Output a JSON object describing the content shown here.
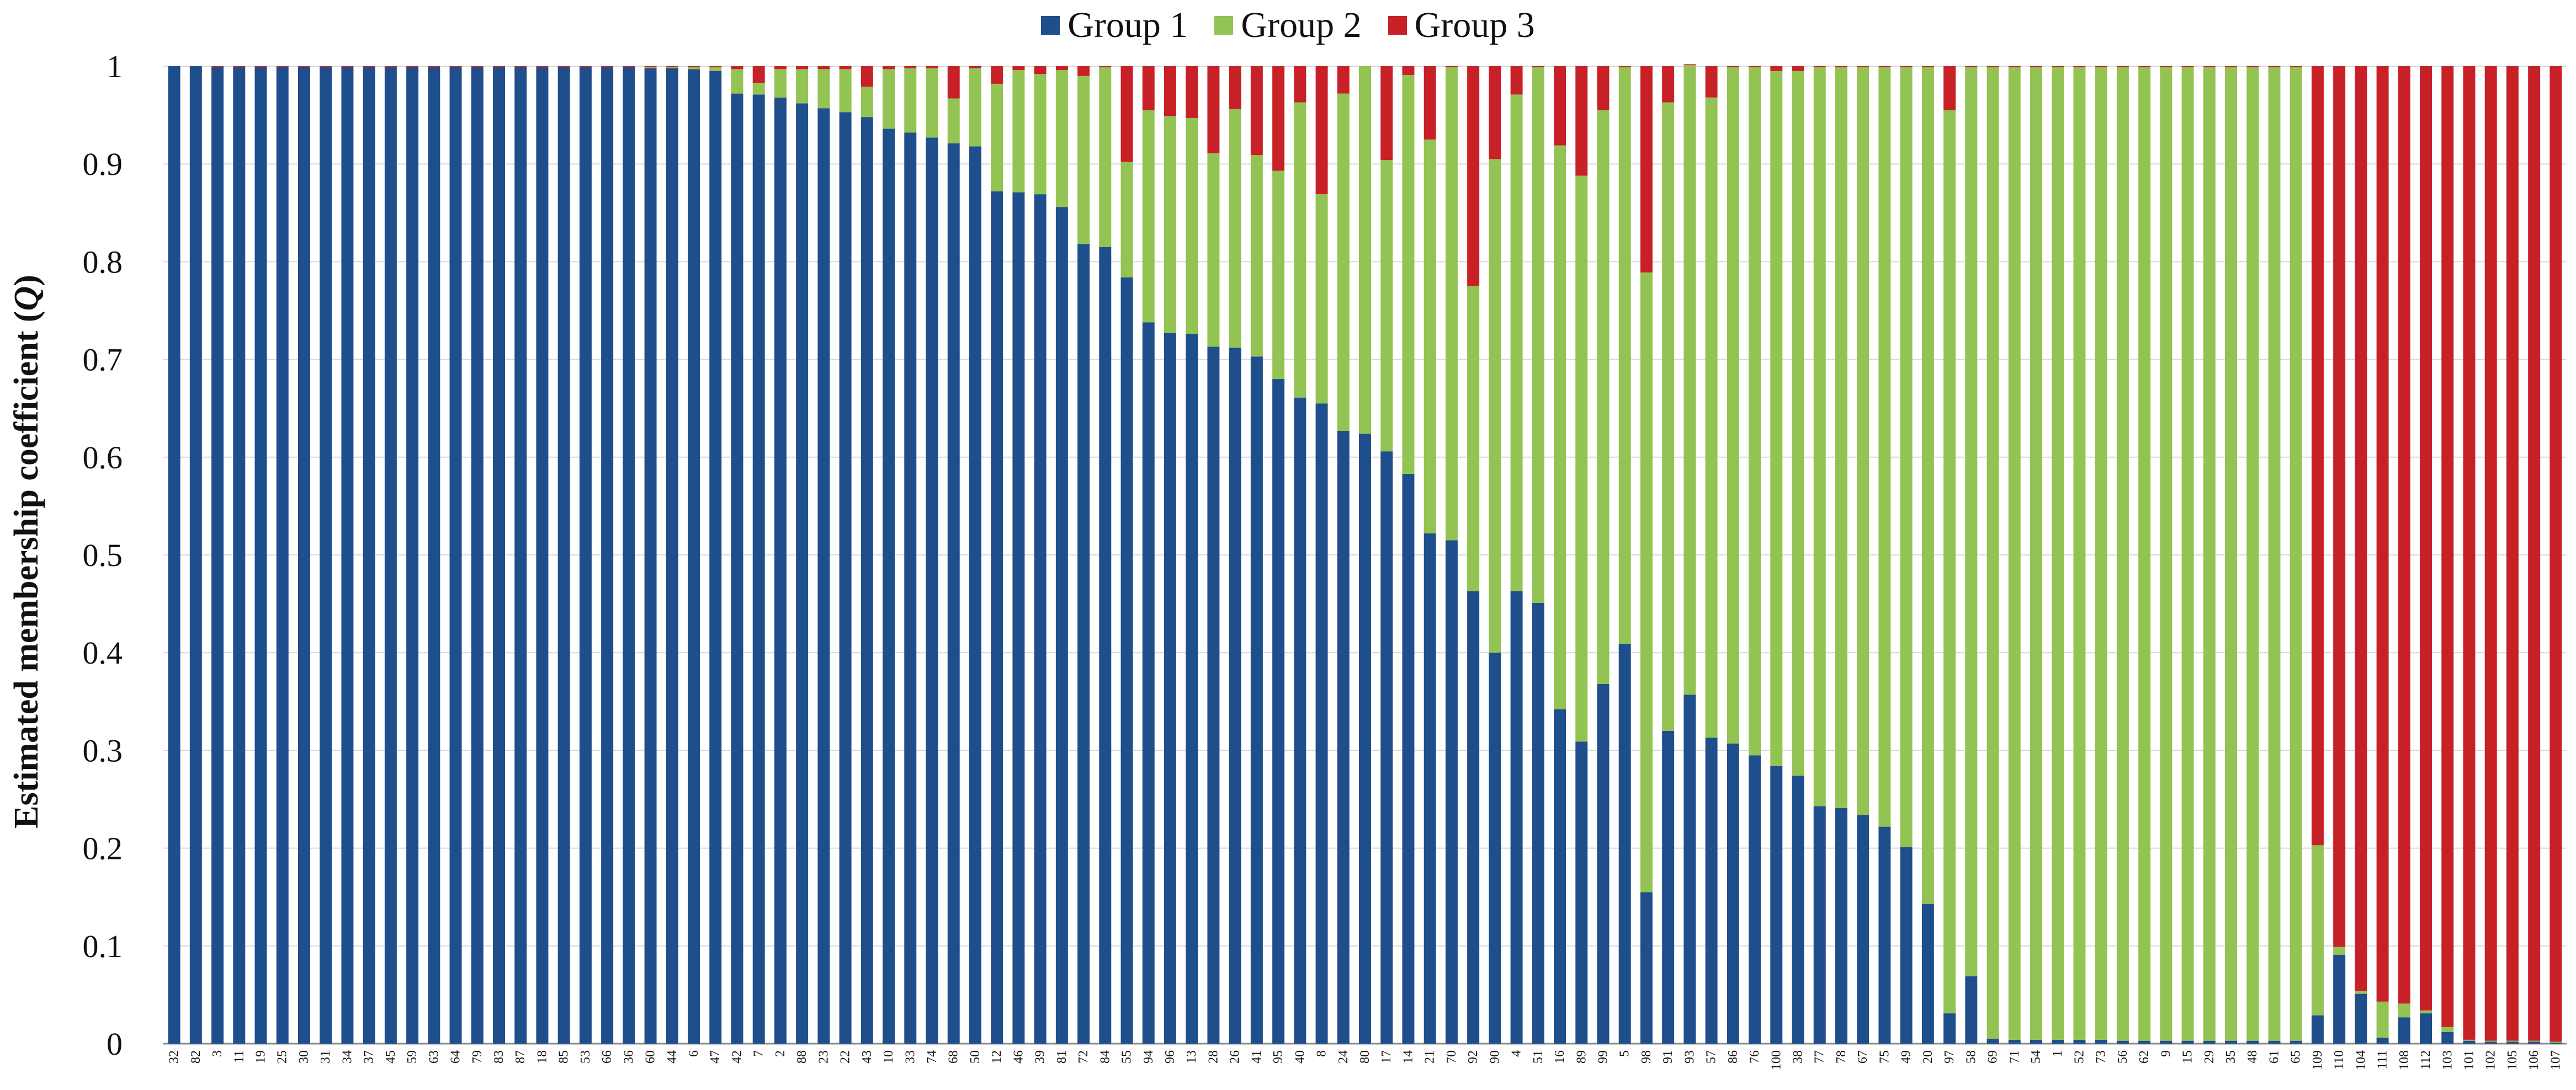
{
  "chart_data": {
    "type": "bar",
    "stacked": true,
    "title": "",
    "xlabel": "",
    "ylabel": "Estimated membership coefficient (Q)",
    "ylabel_parts": [
      "Estimated membership coefficient (",
      "Q",
      ")"
    ],
    "ylim": [
      0,
      1
    ],
    "yticks": [
      "0",
      "0.1",
      "0.2",
      "0.3",
      "0.4",
      "0.5",
      "0.6",
      "0.7",
      "0.8",
      "0.9",
      "1"
    ],
    "grid": true,
    "legend_position": "top-center",
    "categories": [
      "32",
      "82",
      "3",
      "11",
      "19",
      "25",
      "30",
      "31",
      "34",
      "37",
      "45",
      "59",
      "63",
      "64",
      "79",
      "83",
      "87",
      "18",
      "85",
      "53",
      "66",
      "36",
      "60",
      "44",
      "6",
      "47",
      "42",
      "7",
      "2",
      "88",
      "23",
      "22",
      "43",
      "10",
      "33",
      "74",
      "68",
      "50",
      "12",
      "46",
      "39",
      "81",
      "72",
      "84",
      "55",
      "94",
      "96",
      "13",
      "28",
      "26",
      "41",
      "95",
      "40",
      "8",
      "24",
      "80",
      "17",
      "14",
      "21",
      "70",
      "92",
      "90",
      "4",
      "51",
      "16",
      "89",
      "99",
      "5",
      "98",
      "91",
      "93",
      "57",
      "86",
      "76",
      "100",
      "38",
      "77",
      "78",
      "67",
      "75",
      "49",
      "20",
      "97",
      "58",
      "69",
      "71",
      "54",
      "1",
      "52",
      "73",
      "56",
      "62",
      "9",
      "15",
      "29",
      "35",
      "48",
      "61",
      "65",
      "109",
      "110",
      "104",
      "111",
      "108",
      "112",
      "103",
      "101",
      "102",
      "105",
      "106",
      "107"
    ],
    "series": [
      {
        "name": "Group 1",
        "color": "#1f4e8c",
        "values": [
          1,
          1,
          0.999,
          0.999,
          0.999,
          0.999,
          0.999,
          0.999,
          0.999,
          0.999,
          0.999,
          0.999,
          0.999,
          0.999,
          0.999,
          0.999,
          0.999,
          0.999,
          0.999,
          0.999,
          0.999,
          0.999,
          0.998,
          0.998,
          0.997,
          0.995,
          0.972,
          0.971,
          0.968,
          0.962,
          0.957,
          0.953,
          0.948,
          0.936,
          0.932,
          0.927,
          0.921,
          0.918,
          0.872,
          0.871,
          0.869,
          0.856,
          0.818,
          0.815,
          0.784,
          0.738,
          0.727,
          0.726,
          0.713,
          0.712,
          0.703,
          0.68,
          0.661,
          0.655,
          0.627,
          0.624,
          0.606,
          0.583,
          0.522,
          0.515,
          0.463,
          0.4,
          0.463,
          0.451,
          0.342,
          0.309,
          0.368,
          0.409,
          0.155,
          0.32,
          0.357,
          0.313,
          0.307,
          0.295,
          0.284,
          0.274,
          0.243,
          0.241,
          0.234,
          0.222,
          0.201,
          0.143,
          0.031,
          0.069,
          0.005,
          0.004,
          0.004,
          0.004,
          0.004,
          0.004,
          0.003,
          0.003,
          0.003,
          0.003,
          0.003,
          0.003,
          0.003,
          0.003,
          0.003,
          0.029,
          0.091,
          0.051,
          0.006,
          0.027,
          0.031,
          0.012,
          0.003,
          0.002,
          0.002,
          0.002,
          0.001
        ]
      },
      {
        "name": "Group 2",
        "color": "#92c353",
        "values": [
          0,
          0,
          0,
          0,
          0,
          0,
          0,
          0,
          0,
          0,
          0,
          0,
          0,
          0,
          0,
          0,
          0,
          0,
          0,
          0,
          0,
          0,
          0.001,
          0.001,
          0.002,
          0.004,
          0.025,
          0.012,
          0.029,
          0.035,
          0.04,
          0.044,
          0.031,
          0.061,
          0.066,
          0.071,
          0.046,
          0.08,
          0.11,
          0.125,
          0.123,
          0.14,
          0.172,
          0.184,
          0.118,
          0.217,
          0.222,
          0.221,
          0.198,
          0.244,
          0.206,
          0.213,
          0.302,
          0.214,
          0.345,
          0.376,
          0.298,
          0.408,
          0.403,
          0.484,
          0.312,
          0.505,
          0.508,
          0.548,
          0.577,
          0.579,
          0.587,
          0.59,
          0.634,
          0.643,
          0.644,
          0.655,
          0.692,
          0.704,
          0.711,
          0.721,
          0.756,
          0.758,
          0.765,
          0.777,
          0.798,
          0.856,
          0.924,
          0.93,
          0.994,
          0.995,
          0.995,
          0.995,
          0.995,
          0.995,
          0.996,
          0.996,
          0.996,
          0.996,
          0.996,
          0.996,
          0.996,
          0.996,
          0.996,
          0.174,
          0.008,
          0.003,
          0.037,
          0.014,
          0.003,
          0.005,
          0.001,
          0.001,
          0.001,
          0.001,
          0.001
        ]
      },
      {
        "name": "Group 3",
        "color": "#c72127",
        "values": [
          0,
          0,
          0.001,
          0.001,
          0.001,
          0.001,
          0.001,
          0.001,
          0.001,
          0.001,
          0.001,
          0.001,
          0.001,
          0.001,
          0.001,
          0.001,
          0.001,
          0.001,
          0.001,
          0.001,
          0.001,
          0.001,
          0.001,
          0.001,
          0.001,
          0.001,
          0.003,
          0.017,
          0.003,
          0.003,
          0.003,
          0.003,
          0.021,
          0.003,
          0.002,
          0.002,
          0.033,
          0.002,
          0.018,
          0.004,
          0.008,
          0.004,
          0.01,
          0.001,
          0.098,
          0.045,
          0.051,
          0.053,
          0.089,
          0.044,
          0.091,
          0.107,
          0.037,
          0.131,
          0.028,
          0.0,
          0.096,
          0.009,
          0.075,
          0.001,
          0.225,
          0.095,
          0.029,
          0.001,
          0.081,
          0.112,
          0.045,
          0.001,
          0.211,
          0.037,
          0.001,
          0.032,
          0.001,
          0.001,
          0.005,
          0.005,
          0.001,
          0.001,
          0.001,
          0.001,
          0.001,
          0.001,
          0.045,
          0.001,
          0.001,
          0.001,
          0.001,
          0.001,
          0.001,
          0.001,
          0.001,
          0.001,
          0.001,
          0.001,
          0.001,
          0.001,
          0.001,
          0.001,
          0.001,
          0.797,
          0.901,
          0.946,
          0.957,
          0.959,
          0.966,
          0.983,
          0.996,
          0.997,
          0.997,
          0.997,
          0.998
        ]
      }
    ]
  }
}
